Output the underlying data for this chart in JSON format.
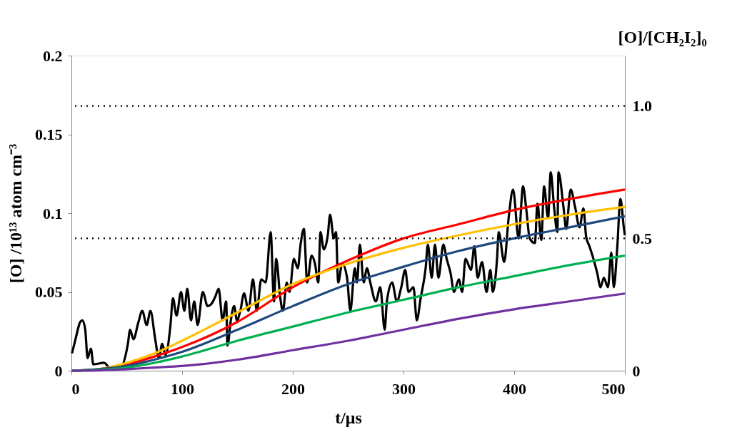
{
  "chart_data": {
    "type": "line",
    "xlabel": "t/μs",
    "ylabel": "[O] /10¹³ atom cm⁻³",
    "y2label": "[O]/[CH₂I₂]₀",
    "xlim": [
      0,
      500
    ],
    "xticks": [
      0,
      100,
      200,
      300,
      400,
      500
    ],
    "ylim": [
      0,
      0.2
    ],
    "yticks": [
      0,
      0.05,
      0.1,
      0.15,
      0.2
    ],
    "y2lim": [
      0,
      1.19
    ],
    "y2ticks": [
      0,
      0.5,
      {
        "value": 1,
        "label": "1.0"
      }
    ],
    "grid": false,
    "legend": false,
    "marker": "none",
    "line_style": "solid",
    "ref_lines": [
      {
        "axis": "y2",
        "value": 0.5,
        "line_style": "dotted",
        "color": "#000000"
      },
      {
        "axis": "y2",
        "value": 1,
        "line_style": "dotted",
        "color": "#000000"
      }
    ],
    "series": [
      {
        "color": "#000000",
        "x": [
          0.5,
          3.7,
          8,
          10,
          12.5,
          14.6,
          17.6,
          19.8,
          29.5,
          36,
          44.5,
          51,
          53,
          56,
          60.6,
          64,
          68,
          71.4,
          75.7,
          79,
          82,
          85,
          89.5,
          91.7,
          95,
          99,
          102,
          104.7,
          108,
          111,
          114,
          118.7,
          123,
          126,
          130,
          133,
          136.6,
          139.8,
          141,
          144,
          147,
          149.5,
          152.6,
          156,
          160,
          164,
          167.5,
          171.5,
          175.5,
          180,
          183,
          185,
          188.7,
          191,
          194.6,
          197,
          201,
          204.5,
          207,
          210,
          213,
          217,
          220,
          223,
          225,
          228,
          231.6,
          233.7,
          237,
          239,
          241,
          244.6,
          249,
          252,
          256,
          258,
          260.6,
          264,
          267,
          270,
          275,
          279,
          283,
          285,
          289.7,
          294,
          298,
          301.5,
          304.6,
          309,
          312,
          315.5,
          320,
          322,
          325.5,
          328.4,
          331.6,
          336,
          339,
          342.5,
          345.7,
          350,
          353,
          356,
          361,
          364,
          367,
          371,
          375,
          378.5,
          380.6,
          384.5,
          386,
          391,
          395,
          399,
          404,
          408,
          411,
          414,
          418.7,
          421,
          424.5,
          427,
          430.6,
          433,
          436,
          439,
          440,
          444.5,
          447,
          451,
          455,
          459,
          462.6,
          465,
          468,
          471.6,
          475,
          478,
          481,
          484.7,
          487.7,
          490,
          493,
          496,
          499,
          500
        ],
        "values": [
          0.011,
          0.02,
          0.031,
          0.032,
          0.026,
          0.008,
          0.014,
          0.004,
          0.005,
          0.001,
          0.002,
          0.017,
          0.026,
          0.02,
          0.031,
          0.038,
          0.029,
          0.038,
          0.02,
          0.008,
          0.017,
          0.01,
          0.029,
          0.046,
          0.035,
          0.05,
          0.038,
          0.052,
          0.032,
          0.044,
          0.029,
          0.05,
          0.041,
          0.042,
          0.047,
          0.052,
          0.032,
          0.044,
          0.016,
          0.032,
          0.041,
          0.032,
          0.038,
          0.049,
          0.038,
          0.058,
          0.038,
          0.058,
          0.056,
          0.088,
          0.044,
          0.071,
          0.046,
          0.038,
          0.056,
          0.05,
          0.071,
          0.065,
          0.08,
          0.09,
          0.056,
          0.073,
          0.068,
          0.056,
          0.088,
          0.077,
          0.086,
          0.099,
          0.084,
          0.088,
          0.056,
          0.068,
          0.059,
          0.038,
          0.065,
          0.056,
          0.08,
          0.056,
          0.065,
          0.056,
          0.044,
          0.053,
          0.026,
          0.044,
          0.056,
          0.044,
          0.053,
          0.064,
          0.05,
          0.053,
          0.032,
          0.046,
          0.065,
          0.08,
          0.059,
          0.08,
          0.059,
          0.08,
          0.071,
          0.062,
          0.05,
          0.058,
          0.05,
          0.071,
          0.064,
          0.079,
          0.059,
          0.069,
          0.05,
          0.064,
          0.05,
          0.071,
          0.088,
          0.069,
          0.097,
          0.115,
          0.084,
          0.117,
          0.102,
          0.084,
          0.081,
          0.106,
          0.083,
          0.117,
          0.097,
          0.126,
          0.104,
          0.088,
          0.126,
          0.104,
          0.09,
          0.115,
          0.104,
          0.091,
          0.103,
          0.085,
          0.079,
          0.071,
          0.062,
          0.053,
          0.059,
          0.053,
          0.075,
          0.053,
          0.077,
          0.109,
          0.091,
          0.086
        ]
      },
      {
        "color": "#ff0000",
        "x": [
          0,
          25,
          50,
          75,
          100,
          150,
          200,
          250,
          300,
          350,
          400,
          450,
          500
        ],
        "values": [
          0,
          0.001,
          0.004,
          0.009,
          0.015,
          0.031,
          0.053,
          0.07,
          0.084,
          0.093,
          0.102,
          0.109,
          0.115
        ]
      },
      {
        "color": "#ffc000",
        "x": [
          0,
          25,
          50,
          75,
          100,
          150,
          200,
          250,
          300,
          350,
          400,
          450,
          500
        ],
        "values": [
          0,
          0.001,
          0.005,
          0.011,
          0.019,
          0.037,
          0.055,
          0.068,
          0.078,
          0.086,
          0.093,
          0.099,
          0.104
        ]
      },
      {
        "color": "#1f497d",
        "x": [
          0,
          25,
          50,
          75,
          100,
          150,
          200,
          250,
          300,
          350,
          400,
          450,
          500
        ],
        "values": [
          0,
          0.001,
          0.003,
          0.007,
          0.012,
          0.026,
          0.041,
          0.055,
          0.066,
          0.076,
          0.084,
          0.091,
          0.098
        ]
      },
      {
        "color": "#00b050",
        "x": [
          0,
          25,
          50,
          75,
          100,
          150,
          200,
          250,
          300,
          350,
          400,
          450,
          500
        ],
        "values": [
          0,
          0.0005,
          0.002,
          0.005,
          0.009,
          0.019,
          0.028,
          0.037,
          0.045,
          0.053,
          0.06,
          0.067,
          0.073
        ]
      },
      {
        "color": "#7030a0",
        "x": [
          0,
          25,
          50,
          75,
          100,
          150,
          200,
          250,
          300,
          350,
          400,
          450,
          500
        ],
        "values": [
          0,
          0.0002,
          0.001,
          0.002,
          0.003,
          0.007,
          0.013,
          0.019,
          0.026,
          0.033,
          0.039,
          0.044,
          0.049
        ]
      }
    ]
  }
}
